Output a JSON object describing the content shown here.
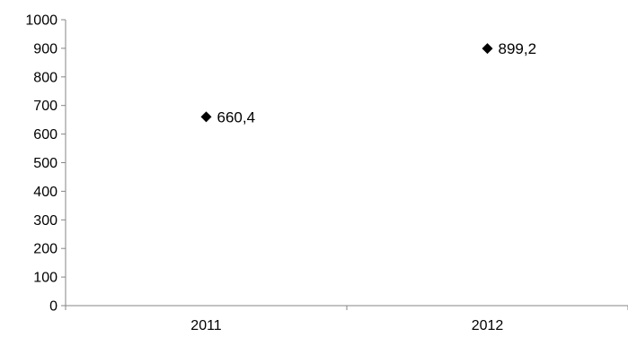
{
  "chart_data": {
    "type": "scatter",
    "title": "",
    "xlabel": "",
    "ylabel": "",
    "categories": [
      "2011",
      "2012"
    ],
    "values": [
      660.4,
      899.2
    ],
    "data_labels": [
      "660,4",
      "899,2"
    ],
    "ylim": [
      0,
      1000
    ],
    "yticks": [
      0,
      100,
      200,
      300,
      400,
      500,
      600,
      700,
      800,
      900,
      1000
    ],
    "ytick_labels": [
      "0",
      "100",
      "200",
      "300",
      "400",
      "500",
      "600",
      "700",
      "800",
      "900",
      "1000"
    ],
    "marker": "diamond",
    "marker_color": "#000000",
    "grid": false,
    "legend": "none"
  }
}
